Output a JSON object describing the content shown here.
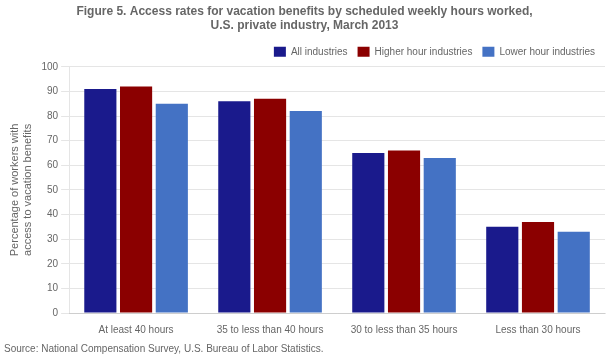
{
  "chart_data": {
    "type": "bar",
    "title": [
      "Figure 5. Access rates for vacation benefits by scheduled weekly hours worked,",
      "U.S. private industry, March 2013"
    ],
    "ylabel": [
      "Percentage of workers with",
      "access to vacation benefits"
    ],
    "annotations": [
      "Source: National Compensation Survey, U.S. Bureau of Labor Statistics."
    ],
    "categories": [
      "At least 40 hours",
      "35 to less than 40 hours",
      "30 to less than 35 hours",
      "Less than 30 hours"
    ],
    "series": [
      {
        "name": "All industries",
        "color": "#1a1a8c",
        "values": [
          91,
          86,
          65,
          35
        ]
      },
      {
        "name": "Higher hour industries",
        "color": "#8B0000",
        "values": [
          92,
          87,
          66,
          37
        ]
      },
      {
        "name": "Lower hour industries",
        "color": "#4472C4",
        "values": [
          85,
          82,
          63,
          33
        ]
      }
    ],
    "ylim": [
      0,
      100
    ],
    "yticks": [
      0,
      10,
      20,
      30,
      40,
      50,
      60,
      70,
      80,
      90,
      100
    ],
    "grid": true,
    "legend": "upper right"
  }
}
